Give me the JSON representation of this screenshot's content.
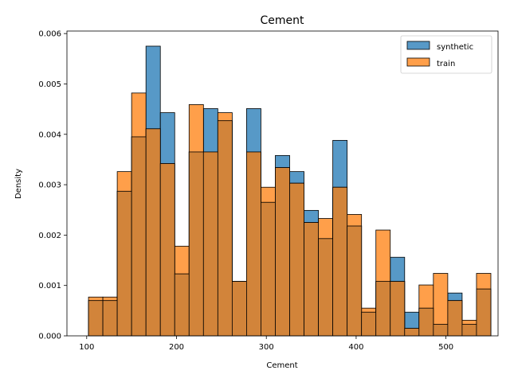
{
  "chart_data": {
    "type": "histogram",
    "title": "Cement",
    "xlabel": "Cement",
    "ylabel": "Density",
    "xlim": [
      78,
      558
    ],
    "ylim": [
      0,
      0.00605
    ],
    "xticks": [
      100,
      200,
      300,
      400,
      500
    ],
    "yticks": [
      0.0,
      0.001,
      0.002,
      0.003,
      0.004,
      0.005,
      0.006
    ],
    "ytick_labels": [
      "0.000",
      "0.001",
      "0.002",
      "0.003",
      "0.004",
      "0.005",
      "0.006"
    ],
    "bin_edges": [
      102,
      118,
      134,
      150,
      166,
      182,
      198,
      214,
      230,
      246,
      262,
      278,
      294,
      310,
      326,
      342,
      358,
      374,
      390,
      406,
      422,
      438,
      454,
      470,
      486,
      502,
      518,
      534,
      550
    ],
    "grid": false,
    "legend_position": "upper-right",
    "series": [
      {
        "name": "synthetic",
        "color": "#1f77b4",
        "values": [
          0.0007,
          0.0007,
          0.00287,
          0.00395,
          0.00575,
          0.00443,
          0.00123,
          0.00365,
          0.00451,
          0.00427,
          0.00108,
          0.00451,
          0.00265,
          0.00358,
          0.00326,
          0.00249,
          0.00193,
          0.00388,
          0.00218,
          0.00047,
          0.00108,
          0.00156,
          0.00047,
          0.00055,
          0.00023,
          0.00085,
          0.00023,
          0.00093
        ]
      },
      {
        "name": "train",
        "color": "#ff7f0e",
        "values": [
          0.00077,
          0.00077,
          0.00326,
          0.00482,
          0.00411,
          0.00342,
          0.00178,
          0.00459,
          0.00365,
          0.00443,
          0.00108,
          0.00365,
          0.00295,
          0.00334,
          0.00303,
          0.00225,
          0.00233,
          0.00295,
          0.00241,
          0.00055,
          0.0021,
          0.00108,
          0.00015,
          0.00101,
          0.00124,
          0.0007,
          0.00031,
          0.00124
        ]
      }
    ],
    "overlap_color": "#d2843a"
  }
}
